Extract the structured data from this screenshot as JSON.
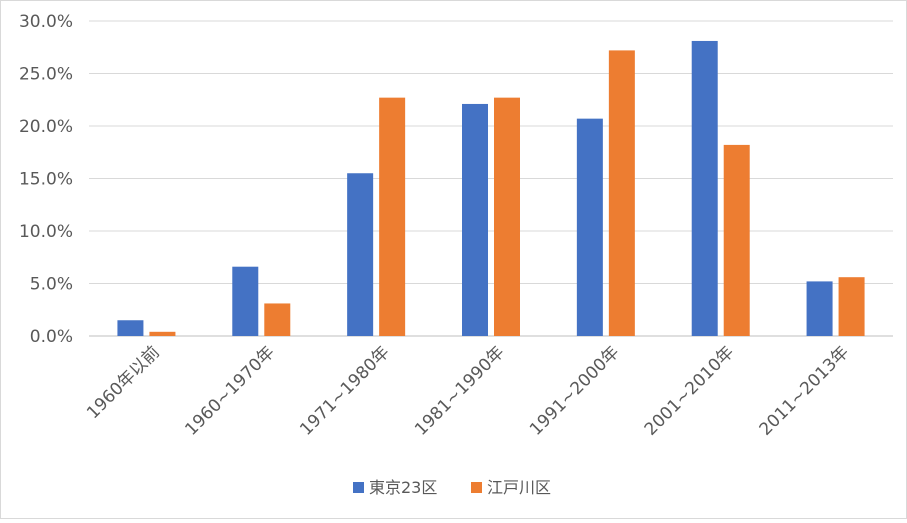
{
  "chart_data": {
    "type": "bar",
    "categories": [
      "1960年以前",
      "1960~1970年",
      "1971~1980年",
      "1981~1990年",
      "1991~2000年",
      "2001~2010年",
      "2011~2013年"
    ],
    "series": [
      {
        "name": "東京23区",
        "color": "#4472c4",
        "values": [
          1.5,
          6.6,
          15.5,
          22.1,
          20.7,
          28.1,
          5.2
        ]
      },
      {
        "name": "江戸川区",
        "color": "#ed7d31",
        "values": [
          0.4,
          3.1,
          22.7,
          22.7,
          27.2,
          18.2,
          5.6
        ]
      }
    ],
    "ylim": [
      0,
      30
    ],
    "yticks": [
      "0.0%",
      "5.0%",
      "10.0%",
      "15.0%",
      "20.0%",
      "25.0%",
      "30.0%"
    ],
    "grid": true,
    "legend_position": "bottom",
    "title": "",
    "xlabel": "",
    "ylabel": ""
  }
}
